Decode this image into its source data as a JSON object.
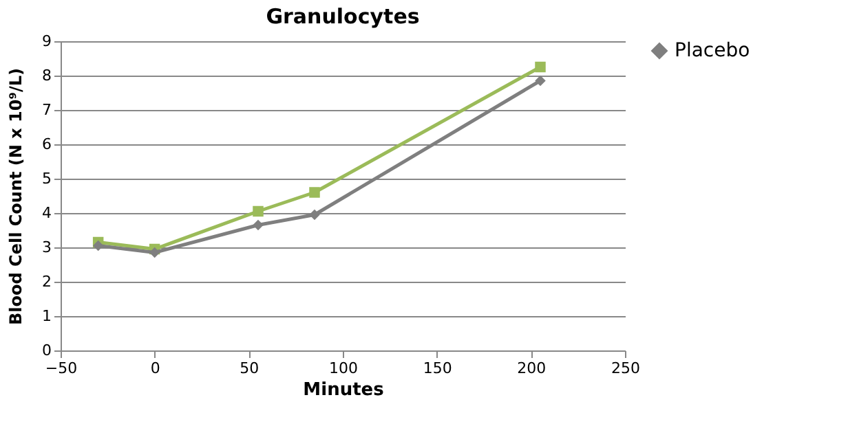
{
  "chart_data": {
    "type": "line",
    "title": "Granulocytes",
    "xlabel": "Minutes",
    "ylabel": "Blood Cell Count  (N x 10⁹/L)",
    "x": [
      -30,
      0,
      55,
      85,
      205
    ],
    "series": [
      {
        "name": "Placebo",
        "color": "#7f7f7f",
        "marker": "diamond",
        "values": [
          3.05,
          2.85,
          3.65,
          3.95,
          7.85
        ]
      },
      {
        "color": "#9bbb59",
        "marker": "square",
        "values": [
          3.15,
          2.95,
          4.05,
          4.6,
          8.25
        ]
      }
    ],
    "xlim": [
      -50,
      250
    ],
    "xticks": [
      -50,
      0,
      50,
      100,
      150,
      200,
      250
    ],
    "ylim": [
      0,
      9
    ],
    "yticks": [
      0,
      1,
      2,
      3,
      4,
      5,
      6,
      7,
      8,
      9
    ],
    "grid": "y",
    "legend": "right",
    "line_style": "solid"
  }
}
